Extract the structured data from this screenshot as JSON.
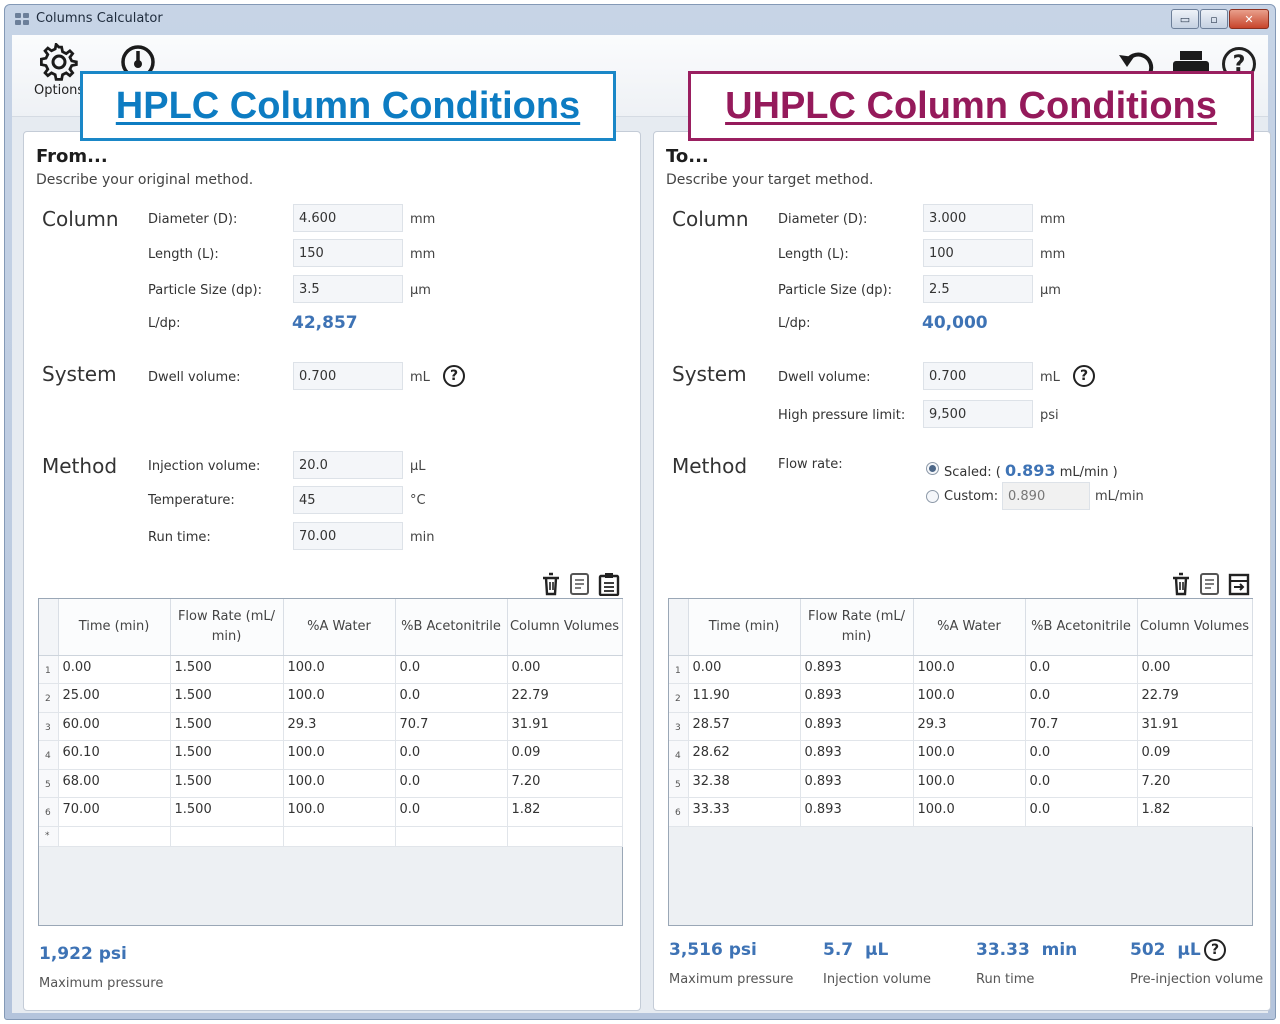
{
  "window": {
    "title": "Columns Calculator",
    "buttons": {
      "minimize": "▭",
      "maximize": "▫",
      "close": "✕"
    }
  },
  "toolbar": {
    "options_label": "Options"
  },
  "banners": {
    "hplc": "HPLC Column Conditions",
    "uhplc": "UHPLC Column Conditions"
  },
  "from": {
    "heading": "From...",
    "description": "Describe your original method.",
    "column": {
      "section": "Column",
      "diameter": {
        "label": "Diameter (D):",
        "value": "4.600",
        "unit": "mm"
      },
      "length": {
        "label": "Length (L):",
        "value": "150",
        "unit": "mm"
      },
      "particle": {
        "label": "Particle Size (dp):",
        "value": "3.5",
        "unit": "µm"
      },
      "ldp": {
        "label": "L/dp:",
        "value": "42,857"
      }
    },
    "system": {
      "section": "System",
      "dwell": {
        "label": "Dwell volume:",
        "value": "0.700",
        "unit": "mL"
      }
    },
    "method": {
      "section": "Method",
      "injection": {
        "label": "Injection volume:",
        "value": "20.0",
        "unit": "µL"
      },
      "temperature": {
        "label": "Temperature:",
        "value": "45",
        "unit": "°C"
      },
      "runtime": {
        "label": "Run time:",
        "value": "70.00",
        "unit": "min"
      }
    },
    "table": {
      "headers": [
        "Time (min)",
        "Flow Rate (mL/ min)",
        "%A Water",
        "%B Acetonitrile",
        "Column Volumes"
      ],
      "rows": [
        [
          "1",
          "0.00",
          "1.500",
          "100.0",
          "0.0",
          "0.00"
        ],
        [
          "2",
          "25.00",
          "1.500",
          "100.0",
          "0.0",
          "22.79"
        ],
        [
          "3",
          "60.00",
          "1.500",
          "29.3",
          "70.7",
          "31.91"
        ],
        [
          "4",
          "60.10",
          "1.500",
          "100.0",
          "0.0",
          "0.09"
        ],
        [
          "5",
          "68.00",
          "1.500",
          "100.0",
          "0.0",
          "7.20"
        ],
        [
          "6",
          "70.00",
          "1.500",
          "100.0",
          "0.0",
          "1.82"
        ],
        [
          "*",
          "",
          "",
          "",
          "",
          ""
        ]
      ]
    },
    "summary": {
      "pressure": {
        "value": "1,922 psi",
        "label": "Maximum pressure"
      }
    }
  },
  "to": {
    "heading": "To...",
    "description": "Describe your target method.",
    "column": {
      "section": "Column",
      "diameter": {
        "label": "Diameter (D):",
        "value": "3.000",
        "unit": "mm"
      },
      "length": {
        "label": "Length (L):",
        "value": "100",
        "unit": "mm"
      },
      "particle": {
        "label": "Particle Size (dp):",
        "value": "2.5",
        "unit": "µm"
      },
      "ldp": {
        "label": "L/dp:",
        "value": "40,000"
      }
    },
    "system": {
      "section": "System",
      "dwell": {
        "label": "Dwell volume:",
        "value": "0.700",
        "unit": "mL"
      },
      "pressure_limit": {
        "label": "High pressure limit:",
        "value": "9,500",
        "unit": "psi"
      }
    },
    "method": {
      "section": "Method",
      "flow_label": "Flow rate:",
      "scaled_prefix": "Scaled: (",
      "scaled_value": "0.893",
      "scaled_suffix": "mL/min )",
      "custom_label": "Custom:",
      "custom_value": "0.890",
      "custom_unit": "mL/min"
    },
    "table": {
      "headers": [
        "Time (min)",
        "Flow Rate (mL/ min)",
        "%A Water",
        "%B Acetonitrile",
        "Column Volumes"
      ],
      "rows": [
        [
          "1",
          "0.00",
          "0.893",
          "100.0",
          "0.0",
          "0.00"
        ],
        [
          "2",
          "11.90",
          "0.893",
          "100.0",
          "0.0",
          "22.79"
        ],
        [
          "3",
          "28.57",
          "0.893",
          "29.3",
          "70.7",
          "31.91"
        ],
        [
          "4",
          "28.62",
          "0.893",
          "100.0",
          "0.0",
          "0.09"
        ],
        [
          "5",
          "32.38",
          "0.893",
          "100.0",
          "0.0",
          "7.20"
        ],
        [
          "6",
          "33.33",
          "0.893",
          "100.0",
          "0.0",
          "1.82"
        ]
      ]
    },
    "summary": {
      "pressure": {
        "value": "3,516 psi",
        "label": "Maximum pressure"
      },
      "injection": {
        "value": "5.7  µL",
        "label": "Injection volume"
      },
      "runtime": {
        "value": "33.33  min",
        "label": "Run time"
      },
      "preinjection": {
        "value": "502  µL",
        "label": "Pre-injection volume"
      }
    }
  },
  "icons": {
    "options": "gear-icon",
    "dial": "dial-icon",
    "undo": "undo-icon",
    "print": "printer-icon",
    "help": "help-icon",
    "table_left": [
      "delete-rows-icon",
      "copy-icon",
      "paste-icon"
    ],
    "table_right": [
      "delete-rows-icon",
      "copy-icon",
      "export-icon"
    ]
  },
  "colors": {
    "hplc": "#0d7cc2",
    "uhplc": "#951a5b",
    "value_blue": "#3e73b5"
  }
}
